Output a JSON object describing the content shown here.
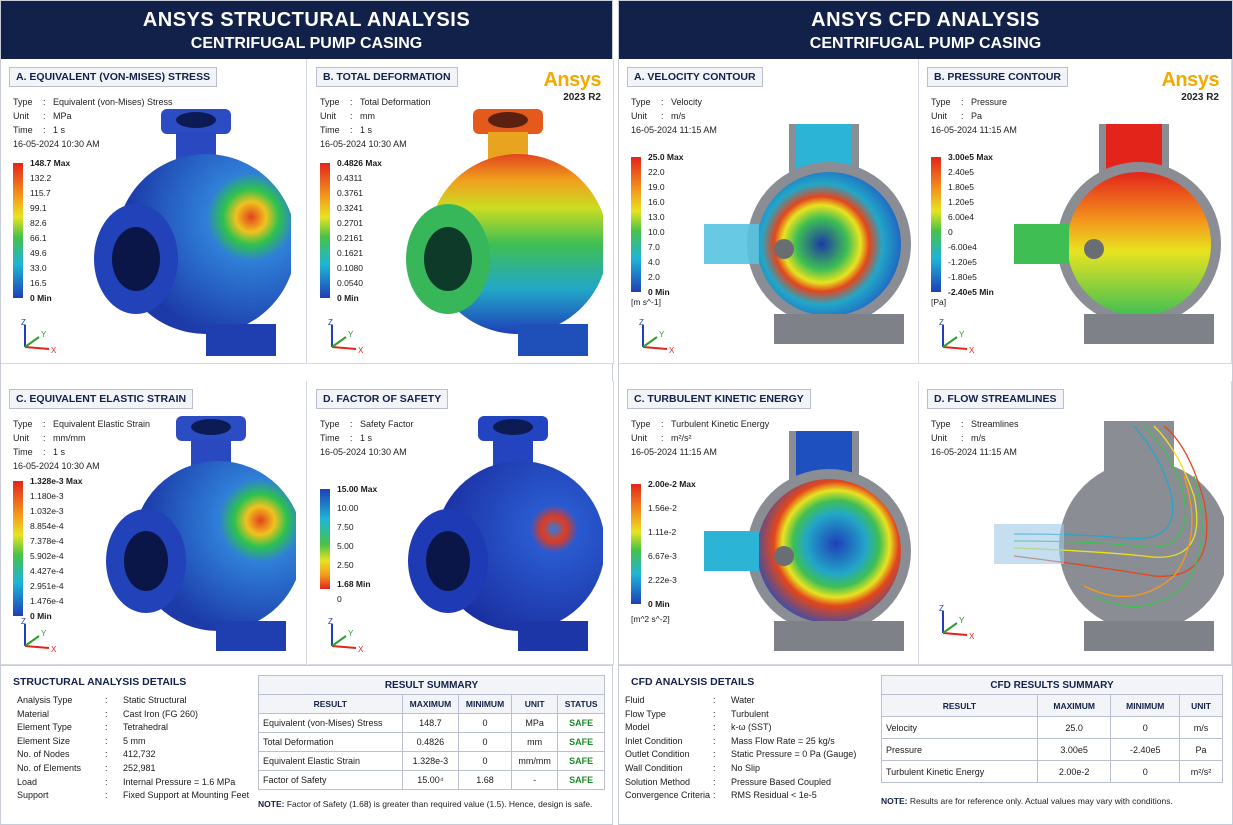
{
  "colors": {
    "navy": "#12214a",
    "accent": "#f2a900",
    "safe": "#1d8b2b"
  },
  "logo": {
    "brand": "Ansys",
    "version": "2023 R2"
  },
  "structural": {
    "title": "ANSYS STRUCTURAL ANALYSIS",
    "subtitle": "CENTRIFUGAL PUMP CASING",
    "panels": [
      {
        "title": "A. EQUIVALENT (VON-MISES) STRESS",
        "type_key": "Type",
        "type": "Equivalent (von-Mises) Stress",
        "unit_key": "Unit",
        "unit": "MPa",
        "time_key": "Time",
        "time": "1 s",
        "date": "16-05-2024 10:30 AM",
        "legend": [
          "148.7 Max",
          "132.2",
          "115.7",
          "99.1",
          "82.6",
          "66.1",
          "49.6",
          "33.0",
          "16.5",
          "0 Min"
        ]
      },
      {
        "title": "B. TOTAL DEFORMATION",
        "type_key": "Type",
        "type": "Total Deformation",
        "unit_key": "Unit",
        "unit": "mm",
        "time_key": "Time",
        "time": "1 s",
        "date": "16-05-2024 10:30 AM",
        "legend": [
          "0.4826 Max",
          "0.4311",
          "0.3761",
          "0.3241",
          "0.2701",
          "0.2161",
          "0.1621",
          "0.1080",
          "0.0540",
          "0 Min"
        ]
      },
      {
        "title": "C. EQUIVALENT ELASTIC STRAIN",
        "type_key": "Type",
        "type": "Equivalent Elastic Strain",
        "unit_key": "Unit",
        "unit": "mm/mm",
        "time_key": "Time",
        "time": "1 s",
        "date": "16-05-2024 10:30 AM",
        "legend": [
          "1.328e-3 Max",
          "1.180e-3",
          "1.032e-3",
          "8.854e-4",
          "7.378e-4",
          "5.902e-4",
          "4.427e-4",
          "2.951e-4",
          "1.476e-4",
          "0 Min"
        ]
      },
      {
        "title": "D. FACTOR OF SAFETY",
        "type_key": "Type",
        "type": "Safety Factor",
        "time_key": "Time",
        "time": "1 s",
        "date": "16-05-2024 10:30 AM",
        "legend": [
          "15.00 Max",
          "10.00",
          "7.50",
          "5.00",
          "2.50",
          "1.68 Min",
          "0"
        ]
      }
    ],
    "details": {
      "title": "STRUCTURAL ANALYSIS DETAILS",
      "rows": [
        {
          "k": "Analysis Type",
          "v": "Static Structural"
        },
        {
          "k": "Material",
          "v": "Cast Iron (FG 260)"
        },
        {
          "k": "Element Type",
          "v": "Tetrahedral"
        },
        {
          "k": "Element Size",
          "v": "5 mm"
        },
        {
          "k": "No. of Nodes",
          "v": "412,732"
        },
        {
          "k": "No. of Elements",
          "v": "252,981"
        },
        {
          "k": "Load",
          "v": "Internal Pressure = 1.6 MPa"
        },
        {
          "k": "Support",
          "v": "Fixed Support at Mounting Feet"
        }
      ]
    },
    "summary": {
      "title": "RESULT SUMMARY",
      "headers": [
        "RESULT",
        "MAXIMUM",
        "MINIMUM",
        "UNIT",
        "STATUS"
      ],
      "rows": [
        [
          "Equivalent (von-Mises) Stress",
          "148.7",
          "0",
          "MPa",
          "SAFE"
        ],
        [
          "Total Deformation",
          "0.4826",
          "0",
          "mm",
          "SAFE"
        ],
        [
          "Equivalent Elastic Strain",
          "1.328e-3",
          "0",
          "mm/mm",
          "SAFE"
        ],
        [
          "Factor of Safety",
          "15.00⁴",
          "1.68",
          "-",
          "SAFE"
        ]
      ],
      "note_label": "NOTE:",
      "note": "Factor of Safety (1.68) is greater than required value (1.5). Hence, design is safe."
    }
  },
  "cfd": {
    "title": "ANSYS CFD ANALYSIS",
    "subtitle": "CENTRIFUGAL PUMP CASING",
    "panels": [
      {
        "title": "A. VELOCITY CONTOUR",
        "type_key": "Type",
        "type": "Velocity",
        "unit_key": "Unit",
        "unit": "m/s",
        "date": "16-05-2024 11:15 AM",
        "legend": [
          "25.0 Max",
          "22.0",
          "19.0",
          "16.0",
          "13.0",
          "10.0",
          "7.0",
          "4.0",
          "2.0",
          "0 Min"
        ],
        "legend_unit": "[m s^-1]"
      },
      {
        "title": "B. PRESSURE CONTOUR",
        "type_key": "Type",
        "type": "Pressure",
        "unit_key": "Unit",
        "unit": "Pa",
        "date": "16-05-2024 11:15 AM",
        "legend": [
          "3.00e5 Max",
          "2.40e5",
          "1.80e5",
          "1.20e5",
          "6.00e4",
          "0",
          "-6.00e4",
          "-1.20e5",
          "-1.80e5",
          "-2.40e5 Min"
        ],
        "legend_unit": "[Pa]"
      },
      {
        "title": "C. TURBULENT KINETIC ENERGY",
        "type_key": "Type",
        "type": "Turbulent Kinetic Energy",
        "unit_key": "Unit",
        "unit": "m²/s²",
        "date": "16-05-2024 11:15 AM",
        "legend": [
          "2.00e-2 Max",
          "1.56e-2",
          "1.11e-2",
          "6.67e-3",
          "2.22e-3",
          "0 Min"
        ],
        "legend_unit": "[m^2 s^-2]"
      },
      {
        "title": "D. FLOW STREAMLINES",
        "type_key": "Type",
        "type": "Streamlines",
        "unit_key": "Unit",
        "unit": "m/s",
        "date": "16-05-2024 11:15 AM"
      }
    ],
    "details": {
      "title": "CFD ANALYSIS DETAILS",
      "rows": [
        {
          "k": "Fluid",
          "v": "Water"
        },
        {
          "k": "Flow Type",
          "v": "Turbulent"
        },
        {
          "k": "Model",
          "v": "k-ω (SST)"
        },
        {
          "k": "Inlet Condition",
          "v": "Mass Flow Rate = 25 kg/s"
        },
        {
          "k": "Outlet Condition",
          "v": "Static Pressure = 0 Pa (Gauge)"
        },
        {
          "k": "Wall Condition",
          "v": "No Slip"
        },
        {
          "k": "Solution Method",
          "v": "Pressure Based Coupled"
        },
        {
          "k": "Convergence Criteria",
          "v": "RMS Residual < 1e-5"
        }
      ]
    },
    "summary": {
      "title": "CFD RESULTS SUMMARY",
      "headers": [
        "RESULT",
        "MAXIMUM",
        "MINIMUM",
        "UNIT"
      ],
      "rows": [
        [
          "Velocity",
          "25.0",
          "0",
          "m/s"
        ],
        [
          "Pressure",
          "3.00e5",
          "-2.40e5",
          "Pa"
        ],
        [
          "Turbulent Kinetic Energy",
          "2.00e-2",
          "0",
          "m²/s²"
        ]
      ],
      "note_label": "NOTE:",
      "note": "Results are for reference only. Actual values may vary with conditions."
    }
  },
  "triad": {
    "z": "Z",
    "y": "Y",
    "x": "X"
  }
}
